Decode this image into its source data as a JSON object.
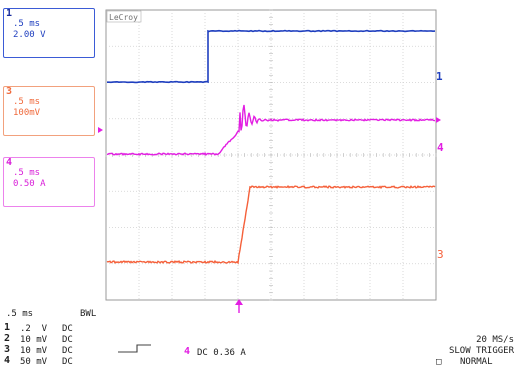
{
  "brand": "LeCroy",
  "traces": [
    {
      "id": "1",
      "timebase": ".5 ms",
      "scale": "2.00 V",
      "color": "#1f3fbf"
    },
    {
      "id": "3",
      "timebase": ".5 ms",
      "scale": "100mV",
      "color": "#f06a3c"
    },
    {
      "id": "4",
      "timebase": ".5 ms",
      "scale": "0.50 A",
      "color": "#e01ee0"
    }
  ],
  "bottom_left": {
    "timebase": ".5 ms",
    "bwl": "BWL",
    "channels": [
      {
        "num": "1",
        "volts": ".2  V",
        "coupling": "DC"
      },
      {
        "num": "2",
        "volts": "10 mV",
        "coupling": "DC"
      },
      {
        "num": "3",
        "volts": "10 mV",
        "coupling": "DC"
      },
      {
        "num": "4",
        "volts": "50 mV",
        "coupling": "DC"
      }
    ]
  },
  "trigger": {
    "channel": "4",
    "coupling_level": "DC 0.36 A",
    "sample_rate": "20 MS/s",
    "mode": "SLOW TRIGGER",
    "state": "NORMAL"
  },
  "markers": {
    "right_1": "1",
    "right_4": "4",
    "right_3": "3"
  },
  "colors": {
    "ch1": "#1f3fbf",
    "ch3": "#f5603a",
    "ch4": "#e21ee2",
    "grid": "#c8c8c8",
    "frame": "#9a9a9a"
  }
}
